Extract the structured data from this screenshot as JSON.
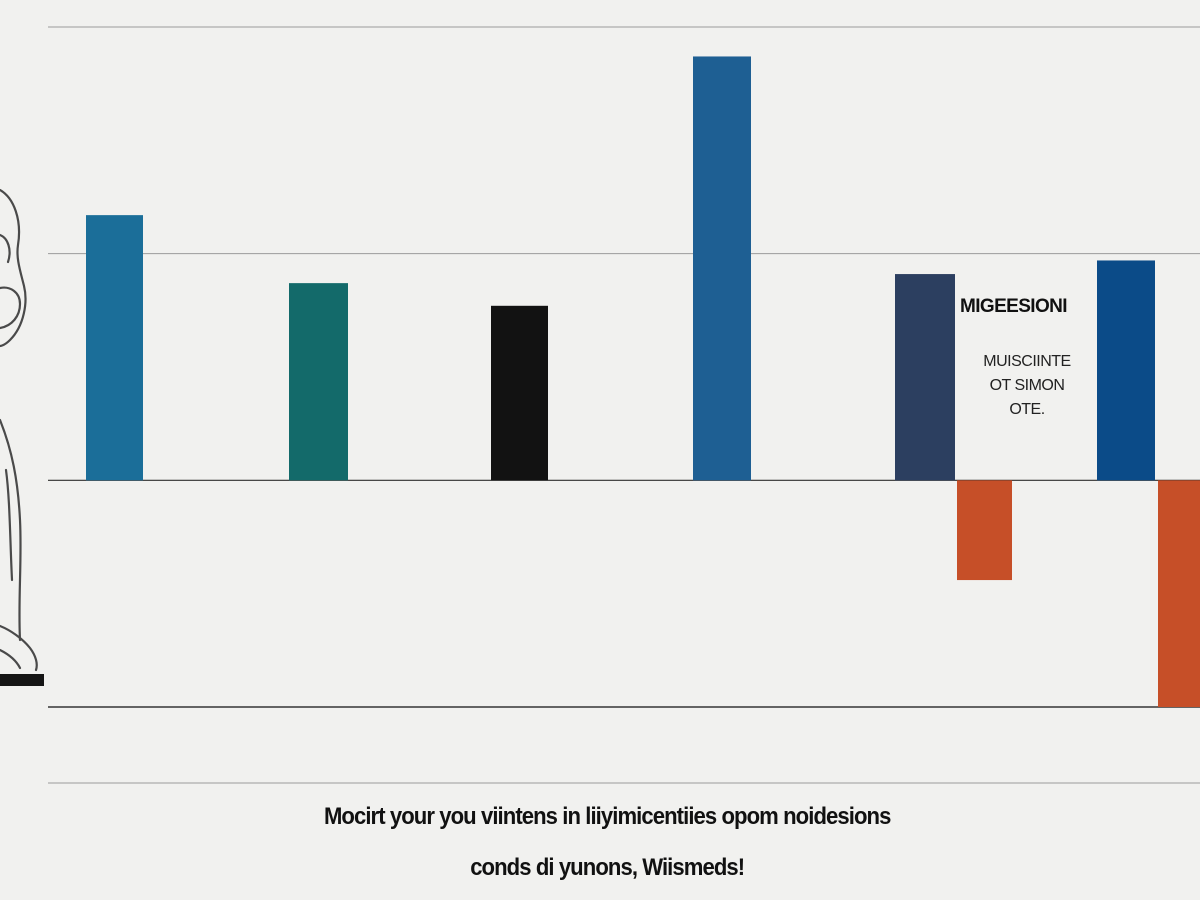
{
  "chart_data": {
    "type": "bar",
    "categories": [
      "",
      "",
      "",
      "",
      "",
      "",
      "",
      ""
    ],
    "values": [
      1.17,
      0.87,
      0.77,
      1.87,
      0.91,
      -0.44,
      0.97,
      -1.0
    ],
    "colors": [
      "#1b6e99",
      "#136a6a",
      "#121212",
      "#1e5f93",
      "#2c3f60",
      "#c64f28",
      "#0b4b88",
      "#c64f28"
    ],
    "ylim": [
      -1.0,
      2.0
    ],
    "grid": true,
    "title": "",
    "xlabel": "",
    "ylabel": "",
    "annotation": {
      "title": "MIGEESIONI",
      "body": "MUISCIINTE\nOT SIMON\nOTE."
    }
  },
  "caption": {
    "line1": "Mocirt your you viintens in liiyimicentiies opom noidesions",
    "line2": "conds di yunons,  Wiismeds!"
  },
  "illustration": {
    "icon": "figure-illustration"
  }
}
